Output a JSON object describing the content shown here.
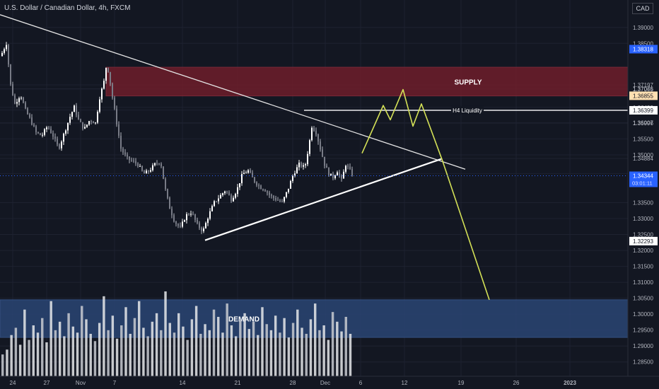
{
  "header": {
    "symbol_title": "U.S. Dollar / Canadian Dollar, 4h, FXCM",
    "currency": "CAD"
  },
  "chart_data": {
    "type": "candlestick",
    "symbol": "USDCAD",
    "timeframe": "4h",
    "source": "FXCM",
    "ylim": [
      1.2805,
      1.3955
    ],
    "y_ticks": [
      "1.39000",
      "1.38500",
      "1.37197",
      "1.37076",
      "1.37065",
      "1.36490",
      "1.36406",
      "1.36007",
      "1.35996",
      "1.35500",
      "1.35000",
      "1.34884",
      "1.34413",
      "1.33500",
      "1.33000",
      "1.32500",
      "1.32000",
      "1.31500",
      "1.31000",
      "1.30500",
      "1.30000",
      "1.29500",
      "1.29000",
      "1.28500"
    ],
    "price_badges": [
      {
        "value": "1.38318",
        "color": "#2962ff"
      },
      {
        "value": "1.36855",
        "color": "#ffe0b2"
      },
      {
        "value": "1.36399",
        "color": "#ffffff"
      },
      {
        "value": "1.32293",
        "color": "#ffffff"
      }
    ],
    "current_price": {
      "value": "1.34344",
      "countdown": "03:01:11",
      "color": "#2962ff"
    },
    "x_ticks": [
      "24",
      "27",
      "Nov",
      "7",
      "14",
      "21",
      "28",
      "Dec",
      "6",
      "12",
      "19",
      "26",
      "2023"
    ],
    "zones": [
      {
        "label": "SUPPLY",
        "from": 1.3685,
        "to": 1.3775,
        "color": "#6e1e2b"
      },
      {
        "label": "DEMAND",
        "from": 1.2927,
        "to": 1.3045,
        "color": "#2a4574"
      }
    ],
    "annotations": [
      {
        "label": "H4 Liquidity",
        "price": 1.36399
      }
    ],
    "price_path": [
      [
        0,
        1.381
      ],
      [
        8,
        1.385
      ],
      [
        14,
        1.372
      ],
      [
        20,
        1.366
      ],
      [
        28,
        1.369
      ],
      [
        35,
        1.364
      ],
      [
        42,
        1.361
      ],
      [
        50,
        1.357
      ],
      [
        58,
        1.356
      ],
      [
        66,
        1.359
      ],
      [
        74,
        1.356
      ],
      [
        82,
        1.352
      ],
      [
        90,
        1.357
      ],
      [
        98,
        1.362
      ],
      [
        104,
        1.365
      ],
      [
        110,
        1.361
      ],
      [
        118,
        1.358
      ],
      [
        126,
        1.361
      ],
      [
        134,
        1.36
      ],
      [
        140,
        1.368
      ],
      [
        146,
        1.373
      ],
      [
        150,
        1.379
      ],
      [
        154,
        1.374
      ],
      [
        158,
        1.368
      ],
      [
        164,
        1.36
      ],
      [
        170,
        1.352
      ],
      [
        178,
        1.349
      ],
      [
        186,
        1.348
      ],
      [
        194,
        1.347
      ],
      [
        202,
        1.344
      ],
      [
        210,
        1.345
      ],
      [
        218,
        1.347
      ],
      [
        226,
        1.348
      ],
      [
        232,
        1.34
      ],
      [
        238,
        1.334
      ],
      [
        246,
        1.329
      ],
      [
        254,
        1.327
      ],
      [
        262,
        1.331
      ],
      [
        270,
        1.332
      ],
      [
        278,
        1.328
      ],
      [
        286,
        1.326
      ],
      [
        294,
        1.331
      ],
      [
        302,
        1.335
      ],
      [
        310,
        1.337
      ],
      [
        318,
        1.339
      ],
      [
        326,
        1.336
      ],
      [
        334,
        1.339
      ],
      [
        342,
        1.344
      ],
      [
        350,
        1.345
      ],
      [
        358,
        1.342
      ],
      [
        366,
        1.34
      ],
      [
        374,
        1.339
      ],
      [
        382,
        1.337
      ],
      [
        390,
        1.336
      ],
      [
        398,
        1.335
      ],
      [
        406,
        1.339
      ],
      [
        414,
        1.344
      ],
      [
        422,
        1.347
      ],
      [
        430,
        1.346
      ],
      [
        436,
        1.353
      ],
      [
        440,
        1.359
      ],
      [
        446,
        1.357
      ],
      [
        452,
        1.352
      ],
      [
        458,
        1.347
      ],
      [
        464,
        1.344
      ],
      [
        470,
        1.343
      ],
      [
        476,
        1.345
      ],
      [
        482,
        1.342
      ],
      [
        488,
        1.347
      ],
      [
        494,
        1.345
      ],
      [
        498,
        1.3435
      ]
    ],
    "volume": [
      18,
      22,
      34,
      40,
      26,
      55,
      30,
      42,
      36,
      48,
      28,
      62,
      38,
      45,
      33,
      52,
      41,
      36,
      58,
      47,
      35,
      29,
      44,
      66,
      38,
      50,
      31,
      42,
      57,
      35,
      48,
      62,
      40,
      33,
      45,
      52,
      38,
      70,
      44,
      36,
      52,
      41,
      30,
      47,
      58,
      35,
      43,
      38,
      55,
      49,
      36,
      60,
      42,
      33,
      46,
      52,
      39,
      45,
      34,
      57,
      43,
      38,
      50,
      36,
      48,
      32,
      44,
      55,
      40,
      35,
      47,
      60,
      38,
      42,
      30,
      53,
      45,
      37,
      49,
      35
    ],
    "overlays": {
      "descending_trendline": [
        [
          0,
          1.394
        ],
        [
          658,
          1.3455
        ]
      ],
      "ascending_trendline": [
        [
          290,
          1.3232
        ],
        [
          624,
          1.3487
        ]
      ],
      "liquidity_line": [
        [
          430,
          1.36399
        ],
        [
          888,
          1.36399
        ]
      ],
      "projection": [
        [
          512,
          1.3505
        ],
        [
          542,
          1.3655
        ],
        [
          552,
          1.361
        ],
        [
          570,
          1.3705
        ],
        [
          584,
          1.359
        ],
        [
          596,
          1.366
        ],
        [
          626,
          1.348
        ],
        [
          692,
          1.3045
        ]
      ]
    }
  }
}
